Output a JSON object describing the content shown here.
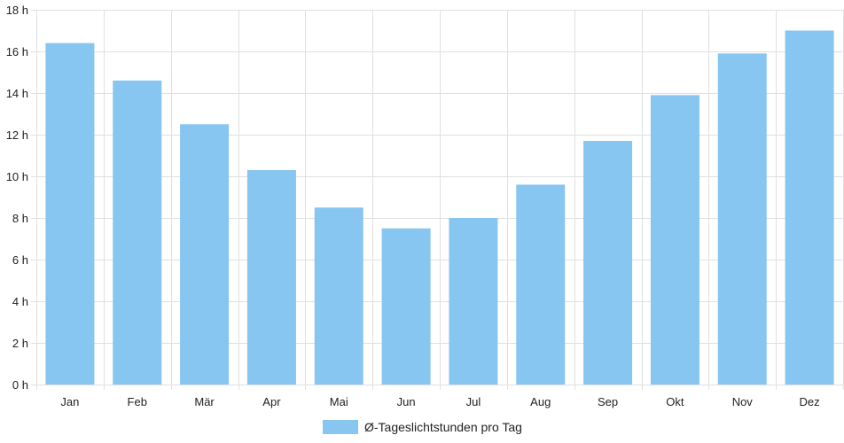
{
  "chart_data": {
    "type": "bar",
    "categories": [
      "Jan",
      "Feb",
      "Mär",
      "Apr",
      "Mai",
      "Jun",
      "Jul",
      "Aug",
      "Sep",
      "Okt",
      "Nov",
      "Dez"
    ],
    "series": [
      {
        "name": "Ø-Tageslichtstunden pro Tag",
        "values": [
          16.4,
          14.6,
          12.5,
          10.3,
          8.5,
          7.5,
          8.0,
          9.6,
          11.7,
          13.9,
          15.9,
          17.0
        ],
        "color": "#87c6f1"
      }
    ],
    "ylim": [
      0,
      18
    ],
    "yticks": [
      0,
      2,
      4,
      6,
      8,
      10,
      12,
      14,
      16,
      18
    ],
    "y_unit_suffix": " h",
    "grid": true,
    "grid_color": "#e0e0e0",
    "legend_position": "bottom"
  }
}
